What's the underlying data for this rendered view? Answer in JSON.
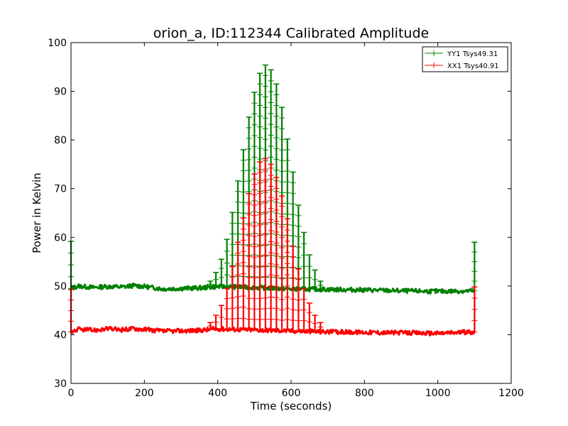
{
  "chart_data": {
    "type": "line",
    "title": "orion_a, ID:112344 Calibrated Amplitude",
    "xlabel": "Time (seconds)",
    "ylabel": "Power in Kelvin",
    "xlim": [
      0,
      1200
    ],
    "ylim": [
      30,
      100
    ],
    "xticks": [
      0,
      200,
      400,
      600,
      800,
      1000,
      1200
    ],
    "yticks": [
      30,
      40,
      50,
      60,
      70,
      80,
      90,
      100
    ],
    "grid": false,
    "legend_position": "top-right",
    "series": [
      {
        "name": "YY1 Tsys49.31",
        "color": "#008000",
        "baseline": [
          [
            0,
            49.5
          ],
          [
            20,
            50
          ],
          [
            60,
            49.7
          ],
          [
            100,
            49.9
          ],
          [
            140,
            49.8
          ],
          [
            170,
            50.1
          ],
          [
            200,
            49.9
          ],
          [
            250,
            49.4
          ],
          [
            300,
            49.5
          ],
          [
            350,
            49.6
          ],
          [
            400,
            49.9
          ],
          [
            500,
            49.7
          ],
          [
            600,
            49.4
          ],
          [
            700,
            49.3
          ],
          [
            800,
            49.2
          ],
          [
            900,
            49.0
          ],
          [
            1000,
            48.9
          ],
          [
            1100,
            49.0
          ]
        ],
        "spikes": [
          [
            0,
            59.2
          ],
          [
            380,
            51
          ],
          [
            395,
            52.8
          ],
          [
            410,
            55.5
          ],
          [
            425,
            59.6
          ],
          [
            440,
            65.1
          ],
          [
            455,
            71.6
          ],
          [
            470,
            78
          ],
          [
            485,
            84.7
          ],
          [
            500,
            89.8
          ],
          [
            515,
            93.7
          ],
          [
            530,
            95.4
          ],
          [
            545,
            94.4
          ],
          [
            560,
            91.5
          ],
          [
            575,
            86.7
          ],
          [
            590,
            80.2
          ],
          [
            605,
            73.4
          ],
          [
            620,
            66.6
          ],
          [
            635,
            61
          ],
          [
            650,
            56.4
          ],
          [
            665,
            53.3
          ],
          [
            680,
            51
          ],
          [
            1100,
            59
          ]
        ]
      },
      {
        "name": "XX1 Tsys40.91",
        "color": "#ff0000",
        "baseline": [
          [
            0,
            40.6
          ],
          [
            20,
            41.1
          ],
          [
            60,
            40.9
          ],
          [
            100,
            41.2
          ],
          [
            140,
            41.0
          ],
          [
            170,
            41.3
          ],
          [
            200,
            41.1
          ],
          [
            250,
            40.7
          ],
          [
            300,
            40.8
          ],
          [
            350,
            40.9
          ],
          [
            400,
            41.2
          ],
          [
            500,
            41.0
          ],
          [
            600,
            40.8
          ],
          [
            700,
            40.6
          ],
          [
            800,
            40.5
          ],
          [
            900,
            40.4
          ],
          [
            1000,
            40.3
          ],
          [
            1100,
            40.6
          ]
        ],
        "spikes": [
          [
            0,
            49.3
          ],
          [
            380,
            42.5
          ],
          [
            395,
            44
          ],
          [
            410,
            46
          ],
          [
            425,
            49.5
          ],
          [
            440,
            54
          ],
          [
            455,
            59
          ],
          [
            470,
            64
          ],
          [
            485,
            69
          ],
          [
            500,
            73
          ],
          [
            515,
            75.5
          ],
          [
            530,
            76.2
          ],
          [
            545,
            75
          ],
          [
            560,
            72.3
          ],
          [
            575,
            68.5
          ],
          [
            590,
            63.8
          ],
          [
            605,
            58.2
          ],
          [
            620,
            53.5
          ],
          [
            635,
            49.5
          ],
          [
            650,
            46.5
          ],
          [
            665,
            44
          ],
          [
            680,
            42.5
          ],
          [
            1100,
            49.8
          ]
        ]
      }
    ]
  }
}
